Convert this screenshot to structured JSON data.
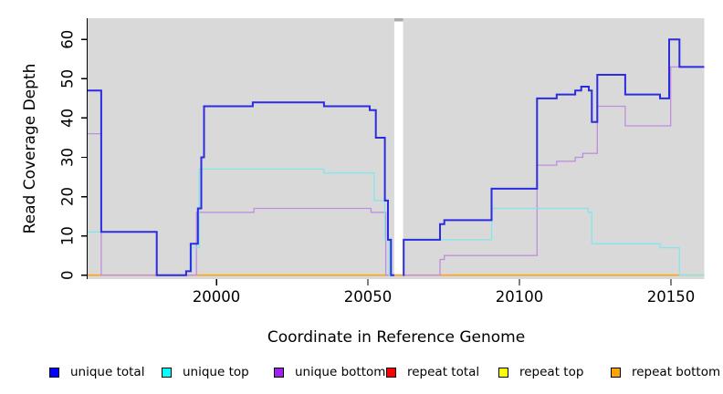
{
  "chart_data": {
    "type": "line",
    "subtype": "step-coverage-plot",
    "title": "",
    "xlabel": "Coordinate in Reference Genome",
    "ylabel": "Read Coverage Depth",
    "xlim": [
      19957.5,
      20161
    ],
    "ylim": [
      0,
      65.5
    ],
    "x_ticks": [
      20000,
      20050,
      20100,
      20150
    ],
    "y_ticks": [
      0,
      10,
      20,
      30,
      40,
      50,
      60
    ],
    "grid": "off",
    "panel_bg": "#D9D9D9",
    "gap_band": {
      "x0": 20058.7,
      "x1": 20061.6,
      "color": "#FFFFFF",
      "cap_color": "#ABABAB"
    },
    "legend_position": "bottom",
    "legend": [
      {
        "label": "unique total",
        "color": "#0000FF"
      },
      {
        "label": "unique top",
        "color": "#00FFFF"
      },
      {
        "label": "unique bottom",
        "color": "#A020F0"
      },
      {
        "label": "repeat total",
        "color": "#FF0000"
      },
      {
        "label": "repeat top",
        "color": "#FFFF00"
      },
      {
        "label": "repeat bottom",
        "color": "#FFA500"
      }
    ],
    "series": [
      {
        "name": "repeat total",
        "line_color": "#E00000",
        "width": 1.2,
        "segments": [
          [
            [
              19957.5,
              0
            ],
            [
              20161,
              0
            ]
          ]
        ]
      },
      {
        "name": "repeat top",
        "line_color": "#F2F200",
        "width": 1.2,
        "segments": [
          [
            [
              19957.5,
              0
            ],
            [
              20161,
              0
            ]
          ]
        ]
      },
      {
        "name": "repeat bottom",
        "line_color": "#FFA216",
        "width": 1.6,
        "segments": [
          [
            [
              19957.5,
              0
            ],
            [
              20161,
              0
            ]
          ]
        ]
      },
      {
        "name": "unique bottom",
        "line_color": "#BE8EDE",
        "width": 1.3,
        "segments": [
          [
            [
              19957.5,
              36
            ],
            [
              19962,
              0
            ],
            [
              19993.4,
              16
            ],
            [
              20012.4,
              17
            ],
            [
              20051,
              16
            ],
            [
              20055.9,
              0
            ],
            [
              20058.7,
              0
            ]
          ],
          [
            [
              20061.6,
              0
            ],
            [
              20073.8,
              4
            ],
            [
              20075.2,
              5
            ],
            [
              20105.8,
              28
            ],
            [
              20112.3,
              29
            ],
            [
              20118.4,
              30
            ],
            [
              20120.9,
              31
            ],
            [
              20125.7,
              43
            ],
            [
              20134.9,
              38
            ],
            [
              20149.9,
              53
            ],
            [
              20161,
              53
            ]
          ]
        ]
      },
      {
        "name": "unique top",
        "line_color": "#82E6EC",
        "width": 1.3,
        "segments": [
          [
            [
              19957.5,
              11
            ],
            [
              19980.3,
              0
            ],
            [
              19990,
              1
            ],
            [
              19991.8,
              7
            ],
            [
              19994.3,
              27
            ],
            [
              20035.5,
              26
            ],
            [
              20052.1,
              19
            ],
            [
              20055.6,
              9
            ],
            [
              20057,
              0
            ],
            [
              20058.7,
              0
            ]
          ],
          [
            [
              20061.6,
              0
            ],
            [
              20061.8,
              9
            ],
            [
              20090.8,
              17
            ],
            [
              20122.7,
              16
            ],
            [
              20123.9,
              8
            ],
            [
              20146.4,
              7
            ],
            [
              20152.8,
              0
            ],
            [
              20161,
              0
            ]
          ]
        ]
      },
      {
        "name": "unique total",
        "line_color": "#2B2BE0",
        "width": 2,
        "segments": [
          [
            [
              19957.5,
              47
            ],
            [
              19962,
              11
            ],
            [
              19980.3,
              0
            ],
            [
              19990,
              1
            ],
            [
              19991.5,
              8
            ],
            [
              19993.9,
              17
            ],
            [
              19995,
              30
            ],
            [
              19995.9,
              43
            ],
            [
              20012,
              44
            ],
            [
              20035.5,
              43
            ],
            [
              20050.6,
              42
            ],
            [
              20052.6,
              35
            ],
            [
              20055.6,
              19
            ],
            [
              20056.6,
              9
            ],
            [
              20057.6,
              0
            ],
            [
              20058.7,
              0
            ]
          ],
          [
            [
              20061.6,
              0
            ],
            [
              20061.8,
              9
            ],
            [
              20073.8,
              13
            ],
            [
              20075.2,
              14
            ],
            [
              20090.8,
              22
            ],
            [
              20105.8,
              45
            ],
            [
              20112.3,
              46
            ],
            [
              20118.4,
              47
            ],
            [
              20120.4,
              48
            ],
            [
              20122.9,
              47
            ],
            [
              20123.9,
              39
            ],
            [
              20125.7,
              51
            ],
            [
              20134.9,
              46
            ],
            [
              20146.4,
              45
            ],
            [
              20149.4,
              60
            ],
            [
              20152.8,
              53
            ],
            [
              20161,
              53
            ]
          ]
        ]
      }
    ]
  }
}
